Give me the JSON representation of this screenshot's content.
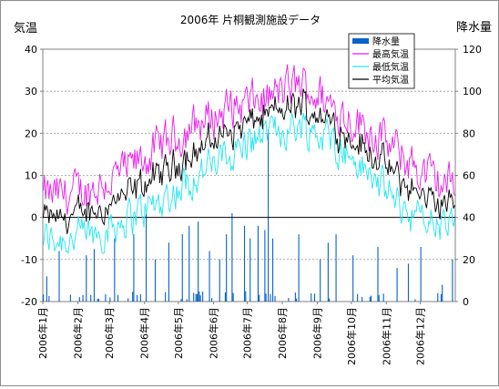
{
  "chart_data": {
    "type": "line",
    "title": "2006年 片桐観測施設データ",
    "ylabel_left": "気温",
    "ylabel_right": "降水量",
    "ylim_left": [
      -20,
      40
    ],
    "ylim_right": [
      0,
      120
    ],
    "yticks_left": [
      "-20",
      "-10",
      "0",
      "10",
      "20",
      "30",
      "40"
    ],
    "yticks_right": [
      "0",
      "20",
      "40",
      "60",
      "80",
      "100",
      "120"
    ],
    "x_categories": [
      "2006年1月",
      "2006年2月",
      "2006年3月",
      "2006年4月",
      "2006年5月",
      "2006年6月",
      "2006年7月",
      "2006年8月",
      "2006年9月",
      "2006年10月",
      "2006年11月",
      "2006年12月"
    ],
    "grid": true,
    "legend_position": "top-right",
    "legend": [
      "降水量",
      "最高気温",
      "最低気温",
      "平均気温"
    ],
    "colors": {
      "precip": "#0a64c8",
      "max": "#e81ee8",
      "min": "#22e6f0",
      "avg": "#000000"
    },
    "series_monthly_approx": {
      "months": [
        "1月",
        "2月",
        "3月",
        "4月",
        "5月",
        "6月",
        "7月",
        "8月",
        "9月",
        "10月",
        "11月",
        "12月"
      ],
      "max_temp": [
        5,
        7,
        11,
        17,
        22,
        26,
        28,
        32,
        26,
        21,
        14,
        8
      ],
      "min_temp": [
        -5,
        -4,
        0,
        4,
        10,
        15,
        20,
        22,
        18,
        10,
        2,
        -2
      ],
      "avg_temp": [
        0,
        1,
        5,
        10,
        16,
        21,
        24,
        27,
        22,
        15,
        8,
        3
      ]
    },
    "precip_notable": [
      {
        "date": "2006-01-04",
        "value": 12
      },
      {
        "date": "2006-01-15",
        "value": 24
      },
      {
        "date": "2006-02-08",
        "value": 22
      },
      {
        "date": "2006-02-15",
        "value": 25
      },
      {
        "date": "2006-03-05",
        "value": 30
      },
      {
        "date": "2006-03-22",
        "value": 32
      },
      {
        "date": "2006-04-02",
        "value": 42
      },
      {
        "date": "2006-04-10",
        "value": 20
      },
      {
        "date": "2006-04-22",
        "value": 28
      },
      {
        "date": "2006-05-04",
        "value": 32
      },
      {
        "date": "2006-05-10",
        "value": 36
      },
      {
        "date": "2006-05-18",
        "value": 38
      },
      {
        "date": "2006-05-28",
        "value": 24
      },
      {
        "date": "2006-06-06",
        "value": 20
      },
      {
        "date": "2006-06-12",
        "value": 32
      },
      {
        "date": "2006-06-17",
        "value": 42
      },
      {
        "date": "2006-06-28",
        "value": 36
      },
      {
        "date": "2006-07-03",
        "value": 30
      },
      {
        "date": "2006-07-10",
        "value": 36
      },
      {
        "date": "2006-07-16",
        "value": 34
      },
      {
        "date": "2006-07-19",
        "value": 82
      },
      {
        "date": "2006-07-23",
        "value": 30
      },
      {
        "date": "2006-08-15",
        "value": 32
      },
      {
        "date": "2006-09-03",
        "value": 20
      },
      {
        "date": "2006-09-10",
        "value": 28
      },
      {
        "date": "2006-09-17",
        "value": 32
      },
      {
        "date": "2006-10-02",
        "value": 22
      },
      {
        "date": "2006-10-24",
        "value": 26
      },
      {
        "date": "2006-11-10",
        "value": 16
      },
      {
        "date": "2006-11-20",
        "value": 18
      },
      {
        "date": "2006-12-01",
        "value": 26
      },
      {
        "date": "2006-12-20",
        "value": 8
      },
      {
        "date": "2006-12-29",
        "value": 20
      }
    ]
  }
}
